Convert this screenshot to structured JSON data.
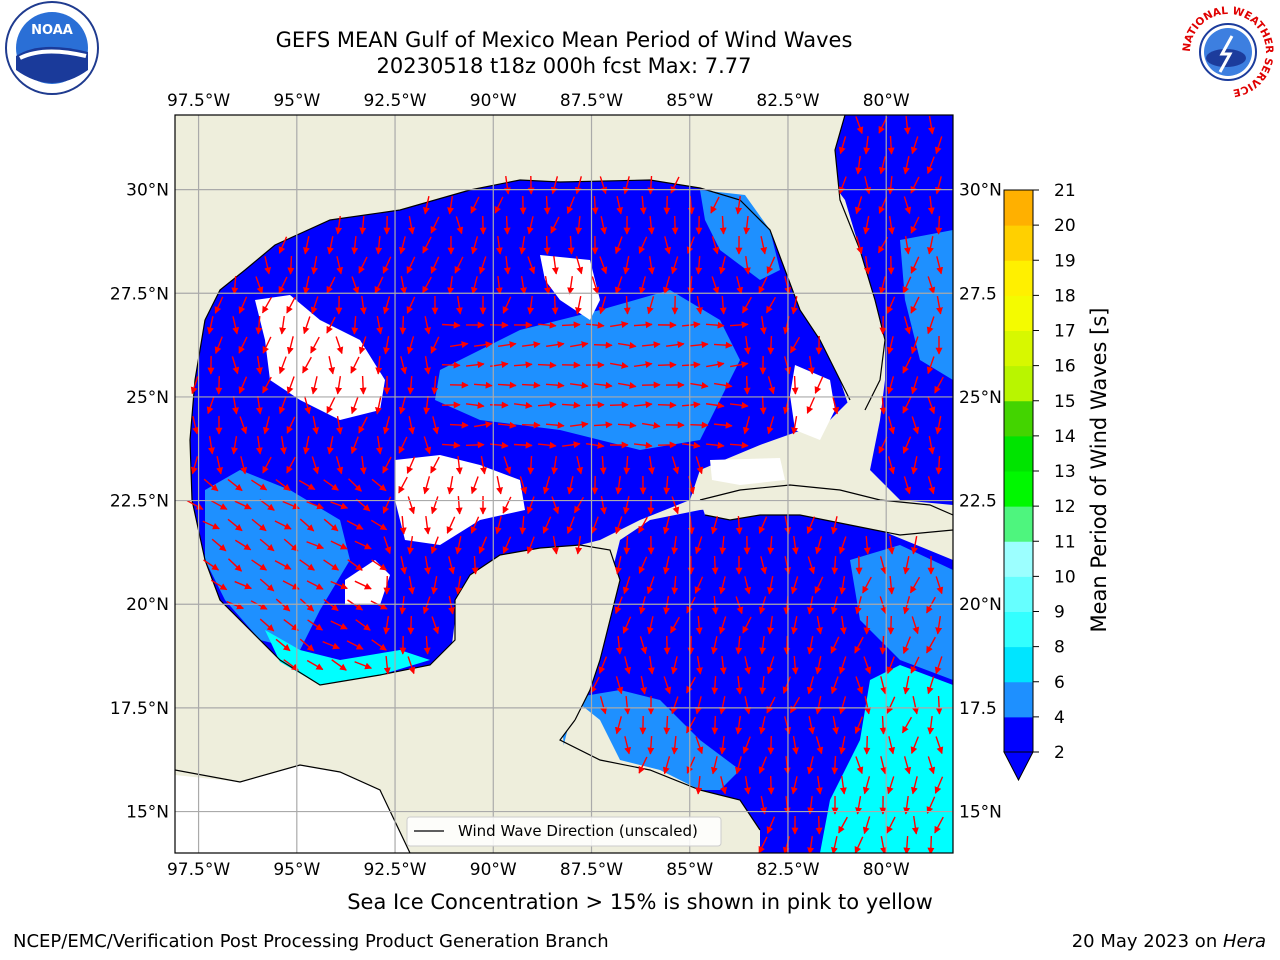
{
  "header": {
    "title_line1": "GEFS MEAN Gulf of Mexico Mean Period of Wind Waves",
    "title_line2": "20230518 t18z 000h fcst   Max: 7.77"
  },
  "logos": {
    "left": "noaa-logo",
    "right": "national-weather-service-logo",
    "left_text": "NOAA",
    "right_ring_text": "NATIONAL WEATHER SERVICE"
  },
  "map": {
    "lon_labels": [
      "97.5°W",
      "95°W",
      "92.5°W",
      "90°W",
      "87.5°W",
      "85°W",
      "82.5°W",
      "80°W"
    ],
    "lat_labels_left": [
      "30°N",
      "27.5°N",
      "25°N",
      "22.5°N",
      "20°N",
      "17.5°N",
      "15°N"
    ],
    "lat_labels_right": [
      "30°N",
      "27.5",
      "25°N",
      "22.5",
      "20°N",
      "17.5",
      "15°N"
    ],
    "lon_range": [
      -98.1,
      -78.3
    ],
    "lat_range": [
      14.0,
      31.8
    ],
    "legend_label": "Wind Wave Direction (unscaled)",
    "colors": {
      "land": "#eeeedc",
      "ocean_low": "#0000ff",
      "ocean_mid": "#1e90ff",
      "ocean_high": "#00ffff",
      "arrows": "#ff0000",
      "grid": "#aaaaaa"
    }
  },
  "colorbar": {
    "title": "Mean Period of Wind Waves [s]",
    "ticks": [
      "21",
      "20",
      "19",
      "18",
      "17",
      "16",
      "15",
      "14",
      "13",
      "12",
      "11",
      "10",
      "9",
      "8",
      "6",
      "4",
      "2"
    ],
    "colors": [
      "#ff0000",
      "#ff2000",
      "#ff4400",
      "#ff6a00",
      "#ff8c00",
      "#ffb000",
      "#ffd000",
      "#fff000",
      "#f4fb00",
      "#d7f800",
      "#b9f500",
      "#43d400",
      "#00e400",
      "#00f800",
      "#4ef57e",
      "#9cffff",
      "#66ffff",
      "#33ffff",
      "#00e5ff",
      "#1e90ff",
      "#0000ff"
    ]
  },
  "captions": {
    "ice_note": "Sea Ice Concentration > 15% is shown in pink to yellow"
  },
  "footer": {
    "left": "NCEP/EMC/Verification Post Processing Product Generation Branch",
    "right_prefix": "20 May 2023 on ",
    "right_host": "Hera"
  }
}
